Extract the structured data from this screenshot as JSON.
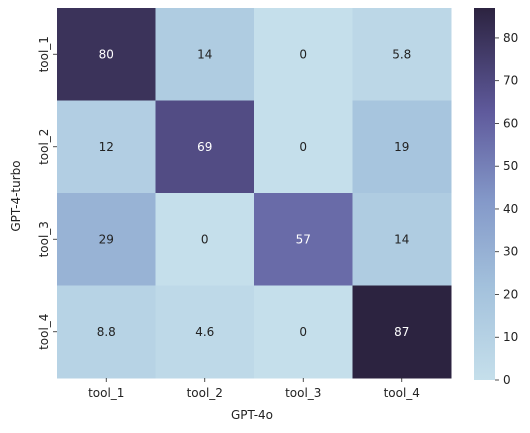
{
  "chart_data": {
    "type": "heatmap",
    "title": "",
    "xlabel": "GPT-4o",
    "ylabel": "GPT-4-turbo",
    "x_categories": [
      "tool_1",
      "tool_2",
      "tool_3",
      "tool_4"
    ],
    "y_categories": [
      "tool_1",
      "tool_2",
      "tool_3",
      "tool_4"
    ],
    "values": [
      [
        80,
        14,
        0,
        5.8
      ],
      [
        12,
        69,
        0,
        19
      ],
      [
        29,
        0,
        57,
        14
      ],
      [
        8.8,
        4.6,
        0,
        87
      ]
    ],
    "value_labels": [
      [
        "80",
        "14",
        "0",
        "5.8"
      ],
      [
        "12",
        "69",
        "0",
        "19"
      ],
      [
        "29",
        "0",
        "57",
        "14"
      ],
      [
        "8.8",
        "4.6",
        "0",
        "87"
      ]
    ],
    "colorbar": {
      "min": 0,
      "max": 87,
      "ticks": [
        0,
        10,
        20,
        30,
        40,
        50,
        60,
        70,
        80
      ],
      "tick_labels": [
        "0",
        "10",
        "20",
        "30",
        "40",
        "50",
        "60",
        "70",
        "80"
      ]
    },
    "colors": {
      "low": "#c5dfeb",
      "mid_low": "#a3c1dc",
      "mid": "#8499c9",
      "mid_high": "#5f5a9c",
      "high": "#2c2340",
      "text_dark": "#222222",
      "text_light": "#ffffff"
    }
  }
}
